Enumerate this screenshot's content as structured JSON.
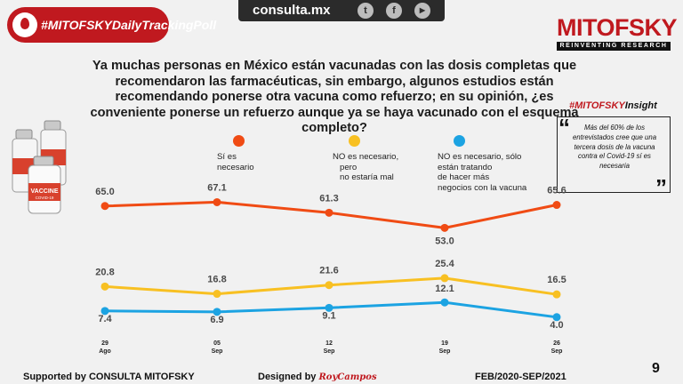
{
  "topbar": {
    "site": "consulta.mx",
    "icons": [
      "twitter-icon",
      "facebook-icon",
      "youtube-icon"
    ],
    "twitter": "t",
    "facebook": "f",
    "youtube": "▶"
  },
  "hashtag": "#MITOFSKYDailyTrackingPoll",
  "logo": {
    "name": "MITOFSKY",
    "tagline": "REINVENTING RESEARCH"
  },
  "question": "Ya muchas personas en México están vacunadas con las dosis completas que recomendaron las farmacéuticas, sin embargo, algunos estudios están recomendando ponerse otra vacuna como refuerzo; en su opinión, ¿es conveniente ponerse un refuerzo aunque ya se haya vacunado con el esquema completo?",
  "vial": {
    "label": "VACCINE",
    "sublabel": "COVID-19"
  },
  "insight": {
    "title_prefix": "#MITOFSKY",
    "title_suffix": "Insight",
    "text": "Más del 60% de los entrevistados cree que una tercera dosis de la vacuna contra el Covid-19 sí es necesaria",
    "open_quote": "“",
    "close_quote": "”"
  },
  "chart_data": {
    "type": "line",
    "categories": [
      "29 Ago",
      "05 Sep",
      "12 Sep",
      "19 Sep",
      "26 Sep"
    ],
    "x_day": [
      "29",
      "05",
      "12",
      "19",
      "26"
    ],
    "x_month": [
      "Ago",
      "Sep",
      "Sep",
      "Sep",
      "Sep"
    ],
    "series": [
      {
        "name": "Sí es necesario",
        "color": "#f04b14",
        "values": [
          65.0,
          67.1,
          61.3,
          53.0,
          65.6
        ],
        "labels": [
          "65.0",
          "67.1",
          "61.3",
          "53.0",
          "65.6"
        ]
      },
      {
        "name": "NO es necesario, pero no estaría mal",
        "color": "#f8c022",
        "values": [
          20.8,
          16.8,
          21.6,
          25.4,
          16.5
        ],
        "labels": [
          "20.8",
          "16.8",
          "21.6",
          "25.4",
          "16.5"
        ]
      },
      {
        "name": "NO es necesario, sólo están tratando de hacer más negocios con la vacuna",
        "color": "#1ca3e2",
        "values": [
          7.4,
          6.9,
          9.1,
          12.1,
          4.0
        ],
        "labels": [
          "7.4",
          "6.9",
          "9.1",
          "12.1",
          "4.0"
        ]
      }
    ],
    "legend": [
      {
        "lines": [
          "Sí es",
          "necesario"
        ]
      },
      {
        "lines": [
          "NO es necesario,",
          "pero",
          "no estaría mal"
        ]
      },
      {
        "lines": [
          "NO es necesario, sólo",
          "están tratando",
          "de hacer más",
          "negocios con la vacuna"
        ]
      }
    ]
  },
  "footer": {
    "supported": "Supported by   CONSULTA   MITOFSKY",
    "designed": "Designed by",
    "designer": "RoyCampos",
    "period": "FEB/2020-SEP/2021",
    "page": "9"
  }
}
